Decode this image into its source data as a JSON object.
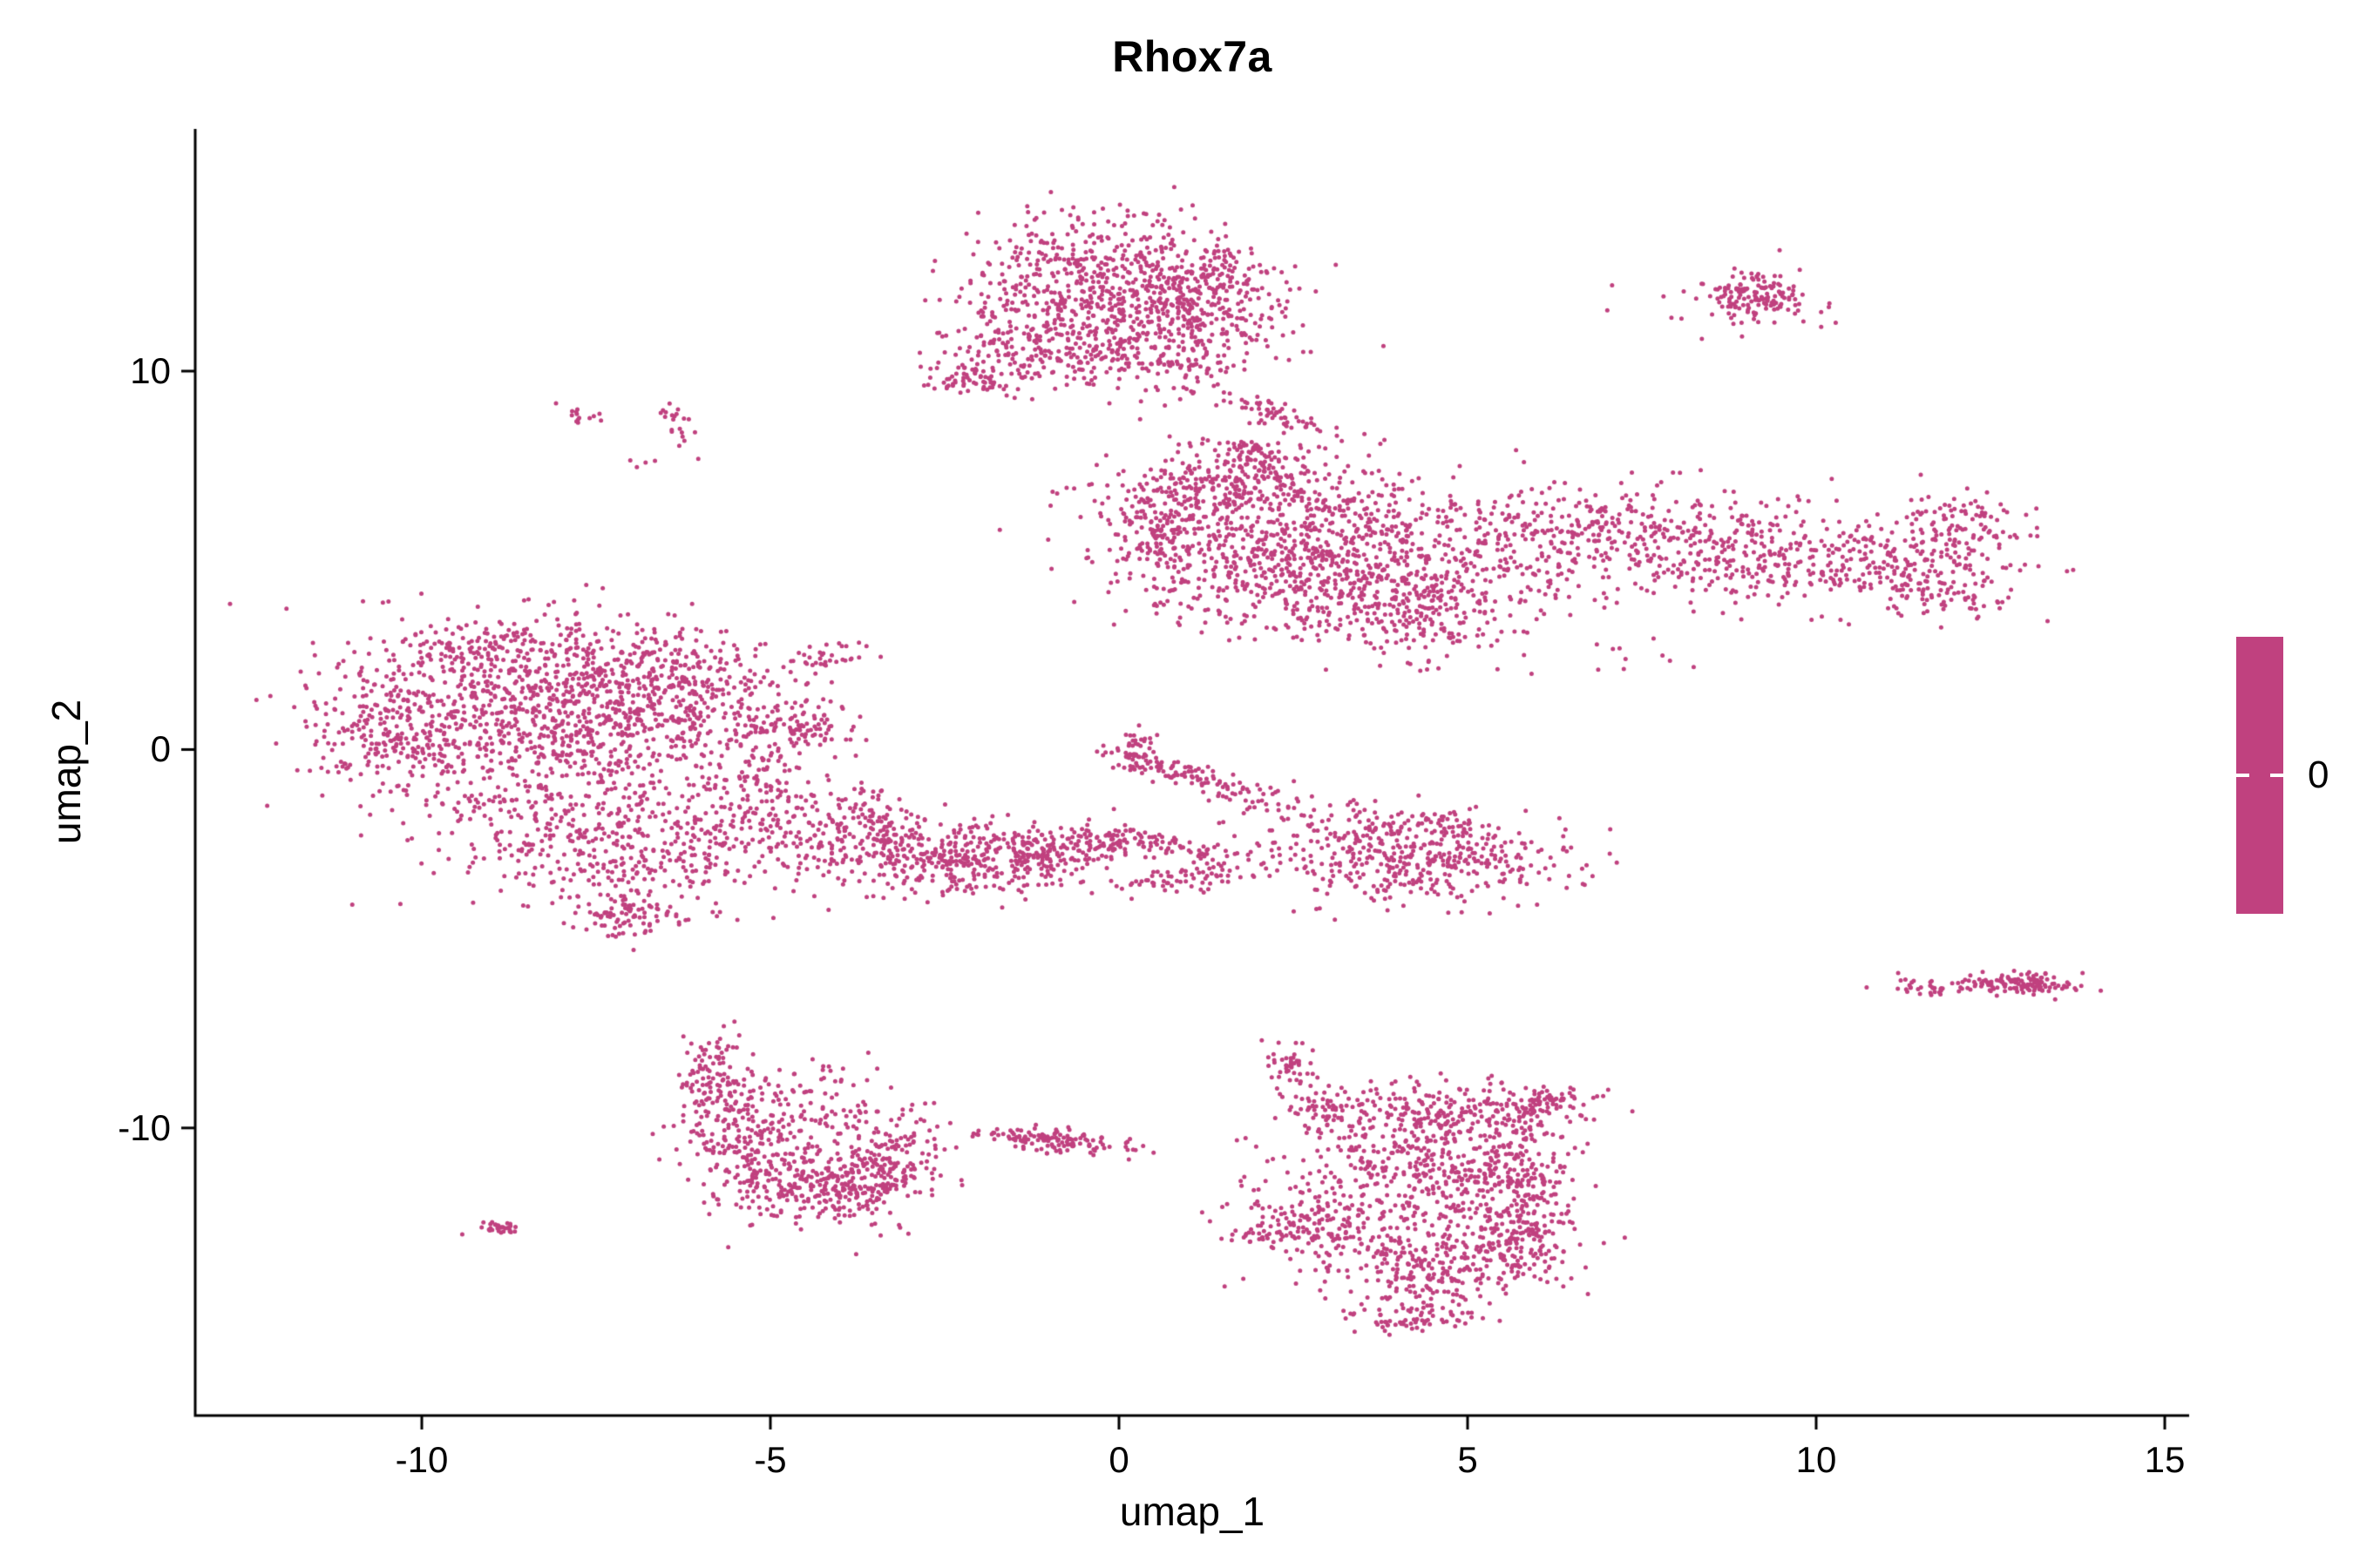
{
  "figure": {
    "title": "Rhox7a",
    "xlabel": "umap_1",
    "ylabel": "umap_2",
    "legend_label": "0",
    "point_color": "#C0417F",
    "axis_color": "#000000",
    "background": "#FFFFFF"
  },
  "chart_data": {
    "type": "scatter",
    "title": "Rhox7a",
    "xlabel": "umap_1",
    "ylabel": "umap_2",
    "xlim": [
      -13.25,
      15.35
    ],
    "ylim": [
      -17.6,
      16.4
    ],
    "x_ticks": [
      -10,
      -5,
      0,
      5,
      10,
      15
    ],
    "y_ticks": [
      -10,
      0,
      10
    ],
    "grid": false,
    "legend": {
      "type": "colorbar",
      "position": "right",
      "labels": [
        "0"
      ],
      "color": "#C0417F"
    },
    "point_radius_px": 2.5,
    "seed": 42,
    "clusters": [
      {
        "name": "top-blob-core",
        "cx": -0.4,
        "cy": 12.7,
        "sx": 1.05,
        "sy": 0.75,
        "n": 380,
        "rot": 0
      },
      {
        "name": "top-blob-lower",
        "cx": 0.4,
        "cy": 11.4,
        "sx": 1.0,
        "sy": 0.85,
        "n": 380,
        "rot": 0
      },
      {
        "name": "top-blob-left-lobe",
        "cx": -1.3,
        "cy": 10.6,
        "sx": 0.65,
        "sy": 0.55,
        "n": 170,
        "rot": 0
      },
      {
        "name": "top-blob-left-tip",
        "cx": -2.1,
        "cy": 9.8,
        "sx": 0.3,
        "sy": 0.22,
        "n": 60,
        "rot": 0
      },
      {
        "name": "top-blob-right-lobe",
        "cx": 1.2,
        "cy": 12.0,
        "sx": 0.55,
        "sy": 0.75,
        "n": 170,
        "rot": 0
      },
      {
        "name": "top-blob-bottom-scatter",
        "cx": 0.5,
        "cy": 10.2,
        "sx": 0.7,
        "sy": 0.45,
        "n": 90,
        "rot": 0
      },
      {
        "name": "upper-mid-streak",
        "cx": 2.3,
        "cy": 8.8,
        "sx": 0.45,
        "sy": 0.16,
        "n": 60,
        "rot": -40
      },
      {
        "name": "top-right-cluster",
        "cx": 9.1,
        "cy": 12.0,
        "sx": 0.33,
        "sy": 0.3,
        "n": 140,
        "rot": 0
      },
      {
        "name": "top-right-scatter",
        "cx": 9.0,
        "cy": 11.8,
        "sx": 0.7,
        "sy": 0.55,
        "n": 25,
        "rot": 0
      },
      {
        "name": "left-speck-a",
        "cx": -7.7,
        "cy": 8.8,
        "sx": 0.18,
        "sy": 0.13,
        "n": 14,
        "rot": 0
      },
      {
        "name": "left-speck-b",
        "cx": -6.4,
        "cy": 8.9,
        "sx": 0.13,
        "sy": 0.18,
        "n": 12,
        "rot": 0
      },
      {
        "name": "left-speck-c",
        "cx": -6.3,
        "cy": 8.3,
        "sx": 0.12,
        "sy": 0.12,
        "n": 8,
        "rot": 0
      },
      {
        "name": "left-speck-d",
        "cx": -6.8,
        "cy": 7.6,
        "sx": 0.3,
        "sy": 0.12,
        "n": 5,
        "rot": 0
      },
      {
        "name": "right-main-core",
        "cx": 2.7,
        "cy": 5.3,
        "sx": 1.45,
        "sy": 1.0,
        "n": 950,
        "rot": 0
      },
      {
        "name": "right-main-top",
        "cx": 1.4,
        "cy": 7.0,
        "sx": 0.75,
        "sy": 0.45,
        "n": 200,
        "rot": 0
      },
      {
        "name": "right-main-top-tip",
        "cx": 2.0,
        "cy": 7.7,
        "sx": 0.4,
        "sy": 0.28,
        "n": 80,
        "rot": 0
      },
      {
        "name": "right-main-left-tip",
        "cx": 0.6,
        "cy": 5.9,
        "sx": 0.4,
        "sy": 0.65,
        "n": 110,
        "rot": 0
      },
      {
        "name": "right-main-lower-arm",
        "cx": 3.9,
        "cy": 3.9,
        "sx": 1.1,
        "sy": 0.5,
        "n": 220,
        "rot": 0
      },
      {
        "name": "right-main-lower-scatter",
        "cx": 4.6,
        "cy": 2.8,
        "sx": 0.5,
        "sy": 0.35,
        "n": 40,
        "rot": 0
      },
      {
        "name": "right-mid-blob",
        "cx": 6.8,
        "cy": 5.6,
        "sx": 1.1,
        "sy": 0.75,
        "n": 330,
        "rot": 0
      },
      {
        "name": "right-band",
        "cx": 9.4,
        "cy": 5.2,
        "sx": 1.25,
        "sy": 0.7,
        "n": 300,
        "rot": -8
      },
      {
        "name": "right-band-strays",
        "cx": 7.2,
        "cy": 2.3,
        "sx": 0.8,
        "sy": 0.35,
        "n": 12,
        "rot": 0
      },
      {
        "name": "right-arm",
        "cx": 11.4,
        "cy": 5.0,
        "sx": 0.8,
        "sy": 0.55,
        "n": 160,
        "rot": 0
      },
      {
        "name": "right-arm-tip-up",
        "cx": 12.1,
        "cy": 6.0,
        "sx": 0.45,
        "sy": 0.38,
        "n": 70,
        "rot": 0
      },
      {
        "name": "right-arm-tip-down",
        "cx": 11.9,
        "cy": 4.1,
        "sx": 0.5,
        "sy": 0.35,
        "n": 60,
        "rot": 0
      },
      {
        "name": "left-main-core",
        "cx": -8.3,
        "cy": 0.8,
        "sx": 1.55,
        "sy": 1.25,
        "n": 1000,
        "rot": 0
      },
      {
        "name": "left-main-right",
        "cx": -6.3,
        "cy": 1.6,
        "sx": 0.9,
        "sy": 0.85,
        "n": 320,
        "rot": 0
      },
      {
        "name": "left-main-top",
        "cx": -8.6,
        "cy": 2.6,
        "sx": 1.0,
        "sy": 0.5,
        "n": 180,
        "rot": 0
      },
      {
        "name": "left-main-west",
        "cx": -10.6,
        "cy": 0.4,
        "sx": 0.45,
        "sy": 0.8,
        "n": 120,
        "rot": 0
      },
      {
        "name": "left-lower-lobe",
        "cx": -7.3,
        "cy": -2.5,
        "sx": 1.25,
        "sy": 0.85,
        "n": 450,
        "rot": -10
      },
      {
        "name": "left-lower-tip",
        "cx": -7.1,
        "cy": -4.4,
        "sx": 0.4,
        "sy": 0.28,
        "n": 80,
        "rot": 0
      },
      {
        "name": "left-right-connector",
        "cx": -5.2,
        "cy": -1.3,
        "sx": 0.55,
        "sy": 0.8,
        "n": 150,
        "rot": 0
      },
      {
        "name": "left-connector-blob",
        "cx": -4.6,
        "cy": 0.55,
        "sx": 0.4,
        "sy": 0.28,
        "n": 80,
        "rot": 0
      },
      {
        "name": "left-small-streak",
        "cx": -4.1,
        "cy": 2.4,
        "sx": 0.35,
        "sy": 0.13,
        "n": 30,
        "rot": 20
      },
      {
        "name": "mid-band-a",
        "cx": -3.7,
        "cy": -2.2,
        "sx": 0.65,
        "sy": 0.55,
        "n": 200,
        "rot": 0
      },
      {
        "name": "mid-band-b",
        "cx": -2.4,
        "cy": -2.9,
        "sx": 0.75,
        "sy": 0.5,
        "n": 260,
        "rot": 0
      },
      {
        "name": "mid-band-c",
        "cx": -1.2,
        "cy": -2.7,
        "sx": 0.55,
        "sy": 0.4,
        "n": 150,
        "rot": 0
      },
      {
        "name": "mid-band-d",
        "cx": -0.3,
        "cy": -2.4,
        "sx": 0.4,
        "sy": 0.28,
        "n": 80,
        "rot": 0
      },
      {
        "name": "chevron-upper",
        "cx": 0.9,
        "cy": -2.6,
        "sx": 0.55,
        "sy": 0.16,
        "n": 70,
        "rot": -18
      },
      {
        "name": "chevron-lower",
        "cx": 1.0,
        "cy": -3.4,
        "sx": 0.55,
        "sy": 0.15,
        "n": 60,
        "rot": 10
      },
      {
        "name": "diag-streak",
        "cx": 1.1,
        "cy": -0.75,
        "sx": 0.85,
        "sy": 0.15,
        "n": 110,
        "rot": -30
      },
      {
        "name": "diag-streak-top",
        "cx": 0.25,
        "cy": -0.05,
        "sx": 0.11,
        "sy": 0.33,
        "n": 45,
        "rot": 0
      },
      {
        "name": "mid-right-blob",
        "cx": 4.3,
        "cy": -3.0,
        "sx": 0.95,
        "sy": 0.55,
        "n": 360,
        "rot": 0
      },
      {
        "name": "mid-right-scatter",
        "cx": 2.9,
        "cy": -2.1,
        "sx": 0.8,
        "sy": 0.5,
        "n": 90,
        "rot": 0
      },
      {
        "name": "mid-right-top-edge",
        "cx": 4.7,
        "cy": -2.0,
        "sx": 0.5,
        "sy": 0.2,
        "n": 50,
        "rot": 0
      },
      {
        "name": "right-streak-main",
        "cx": 12.9,
        "cy": -6.2,
        "sx": 0.45,
        "sy": 0.14,
        "n": 130,
        "rot": 0
      },
      {
        "name": "right-streak-left",
        "cx": 11.7,
        "cy": -6.3,
        "sx": 0.28,
        "sy": 0.1,
        "n": 35,
        "rot": 0
      },
      {
        "name": "crescent-left-edge",
        "cx": -5.85,
        "cy": -8.6,
        "sx": 0.22,
        "sy": 0.5,
        "n": 90,
        "rot": 0
      },
      {
        "name": "crescent-mid",
        "cx": -5.3,
        "cy": -10.2,
        "sx": 0.45,
        "sy": 0.75,
        "n": 160,
        "rot": 0
      },
      {
        "name": "crescent-bottom",
        "cx": -4.4,
        "cy": -11.5,
        "sx": 0.7,
        "sy": 0.5,
        "n": 260,
        "rot": 0
      },
      {
        "name": "crescent-right-lobe",
        "cx": -3.4,
        "cy": -11.0,
        "sx": 0.4,
        "sy": 0.75,
        "n": 190,
        "rot": 0
      },
      {
        "name": "crescent-inner-scatter",
        "cx": -4.6,
        "cy": -9.9,
        "sx": 0.8,
        "sy": 0.75,
        "n": 110,
        "rot": 0
      },
      {
        "name": "crescent-top-strays",
        "cx": -4.8,
        "cy": -8.6,
        "sx": 0.45,
        "sy": 0.35,
        "n": 25,
        "rot": 0
      },
      {
        "name": "tiny-left-streak",
        "cx": -8.9,
        "cy": -12.6,
        "sx": 0.24,
        "sy": 0.09,
        "n": 30,
        "rot": 10
      },
      {
        "name": "bottom-mid-streak",
        "cx": -1.05,
        "cy": -10.3,
        "sx": 0.55,
        "sy": 0.15,
        "n": 130,
        "rot": -10
      },
      {
        "name": "br-top-tail",
        "cx": 2.4,
        "cy": -8.3,
        "sx": 0.16,
        "sy": 0.33,
        "n": 40,
        "rot": 0
      },
      {
        "name": "br-diag-tail",
        "cx": 2.9,
        "cy": -9.4,
        "sx": 0.18,
        "sy": 0.45,
        "n": 60,
        "rot": 15
      },
      {
        "name": "br-upper-blob",
        "cx": 4.6,
        "cy": -9.6,
        "sx": 0.95,
        "sy": 0.45,
        "n": 260,
        "rot": 0
      },
      {
        "name": "br-upper-right-arm",
        "cx": 6.1,
        "cy": -9.3,
        "sx": 0.4,
        "sy": 0.2,
        "n": 70,
        "rot": 0
      },
      {
        "name": "br-mid",
        "cx": 4.3,
        "cy": -11.0,
        "sx": 0.85,
        "sy": 0.55,
        "n": 250,
        "rot": 0
      },
      {
        "name": "br-right-lobe",
        "cx": 5.6,
        "cy": -11.6,
        "sx": 0.45,
        "sy": 0.8,
        "n": 200,
        "rot": 0
      },
      {
        "name": "br-left-arm",
        "cx": 3.0,
        "cy": -12.2,
        "sx": 0.75,
        "sy": 0.4,
        "n": 150,
        "rot": 0
      },
      {
        "name": "br-left-streak",
        "cx": 2.6,
        "cy": -12.8,
        "sx": 0.5,
        "sy": 0.13,
        "n": 60,
        "rot": 0
      },
      {
        "name": "br-bottom-blob",
        "cx": 4.6,
        "cy": -13.6,
        "sx": 0.95,
        "sy": 0.65,
        "n": 350,
        "rot": 0
      },
      {
        "name": "br-bottom-tip",
        "cx": 4.2,
        "cy": -15.0,
        "sx": 0.4,
        "sy": 0.22,
        "n": 55,
        "rot": 0
      },
      {
        "name": "br-right-edge",
        "cx": 5.9,
        "cy": -12.9,
        "sx": 0.3,
        "sy": 0.5,
        "n": 80,
        "rot": 0
      },
      {
        "name": "br-strays",
        "cx": 6.0,
        "cy": -11.0,
        "sx": 0.4,
        "sy": 0.4,
        "n": 30,
        "rot": 0
      }
    ]
  }
}
